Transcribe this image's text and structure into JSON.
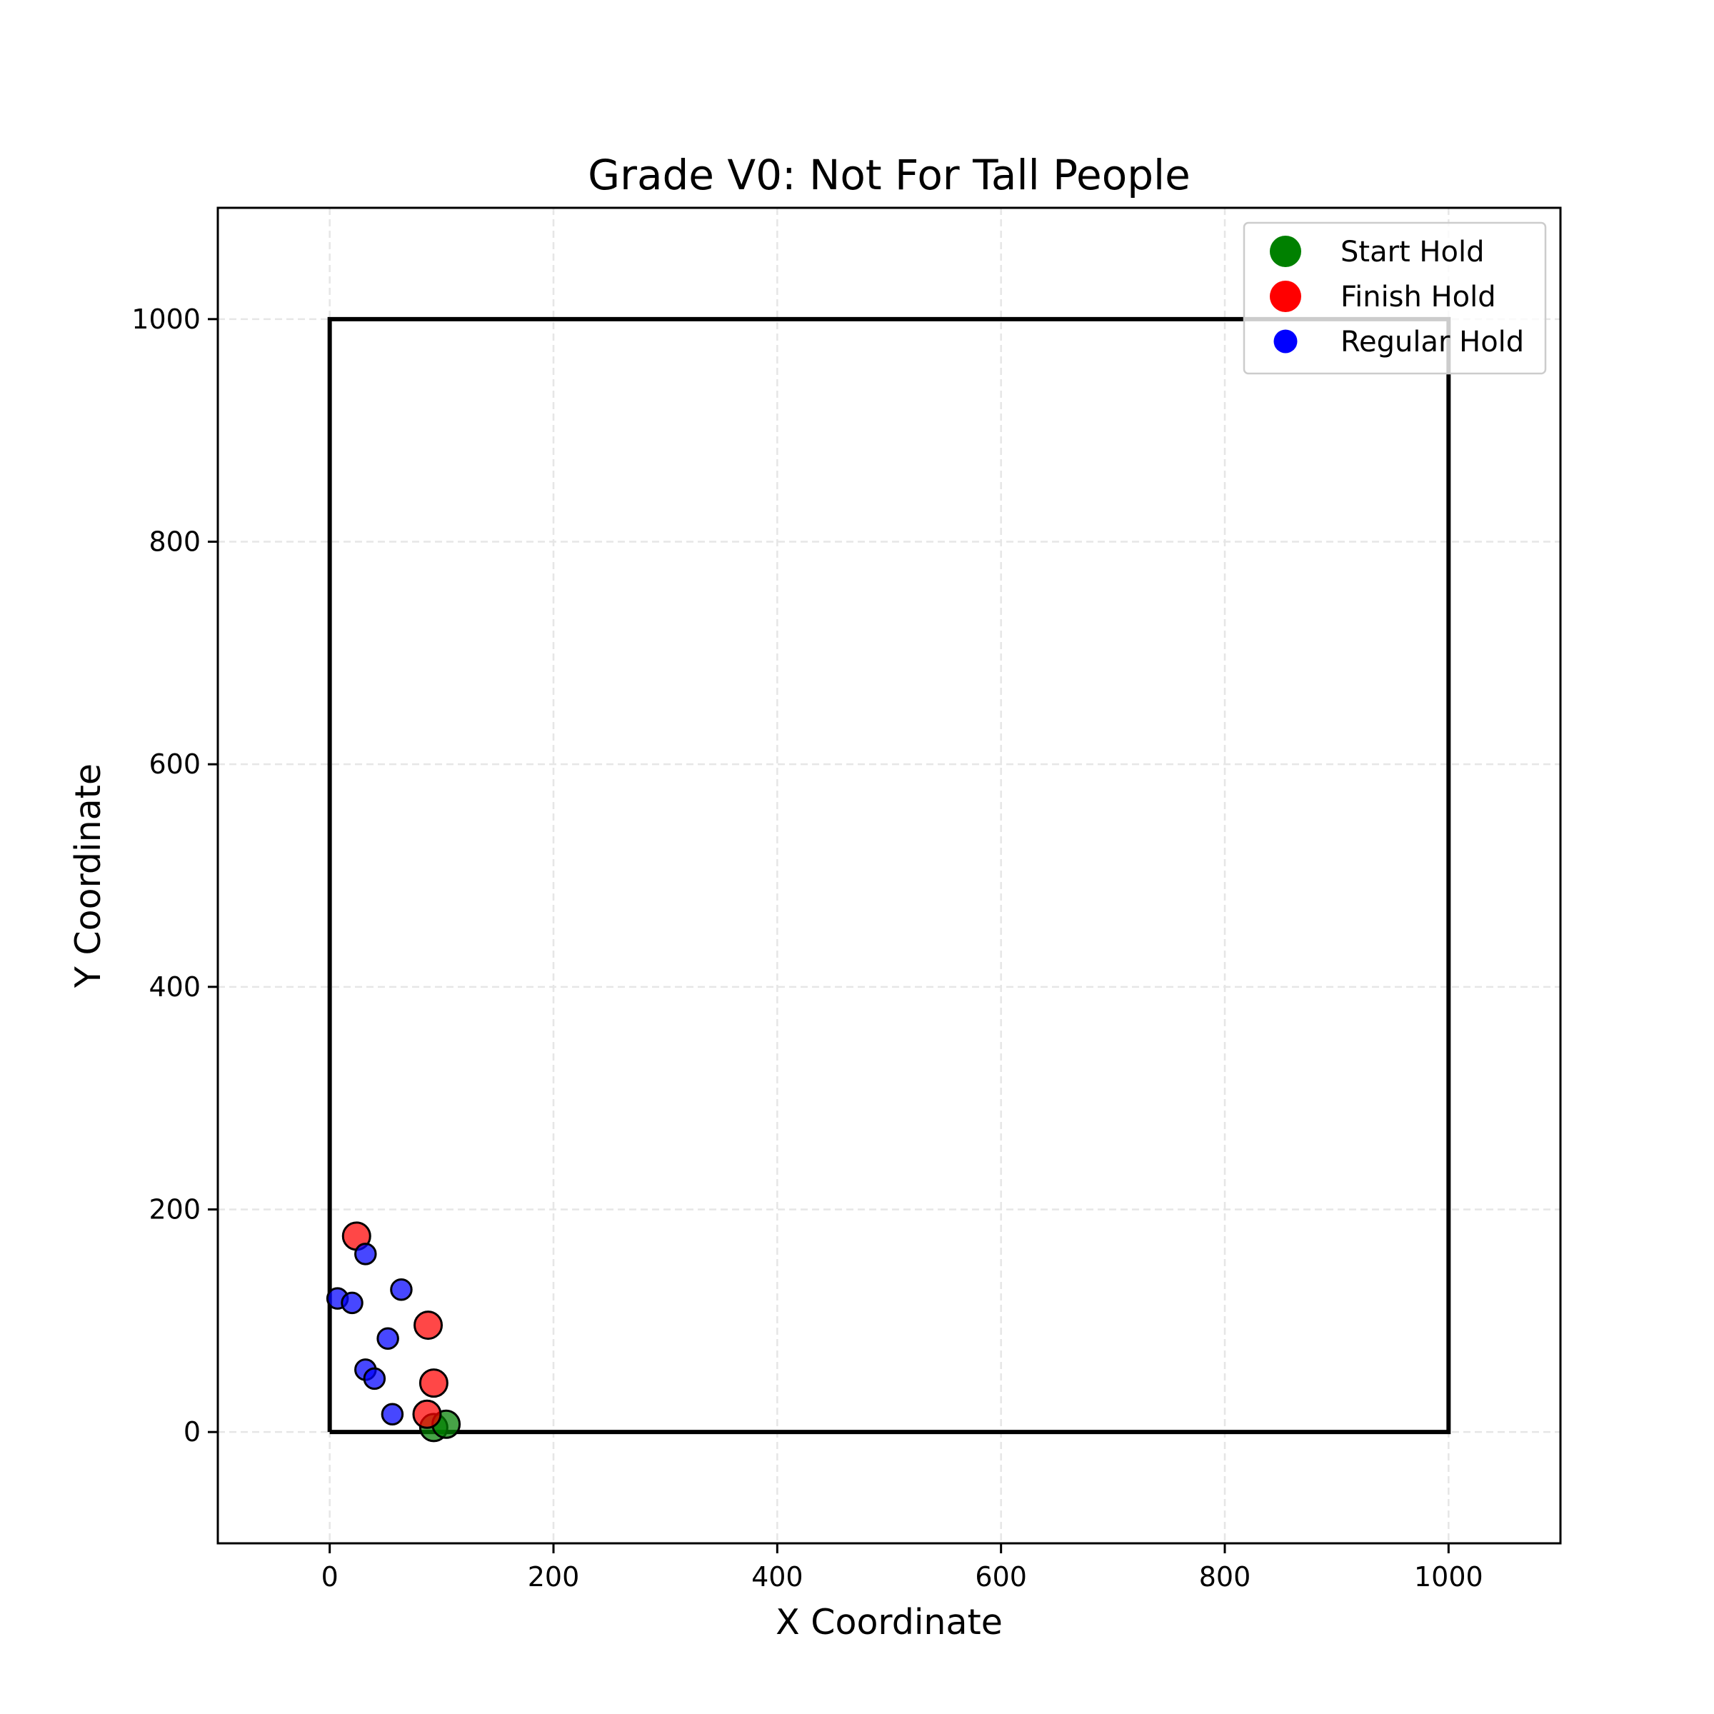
{
  "chart_data": {
    "type": "scatter",
    "title": "Grade V0: Not For Tall People",
    "xlabel": "X Coordinate",
    "ylabel": "Y Coordinate",
    "xlim": [
      -100,
      1100
    ],
    "ylim": [
      -100,
      1100
    ],
    "xticks": [
      0,
      200,
      400,
      600,
      800,
      1000
    ],
    "yticks": [
      0,
      200,
      400,
      600,
      800,
      1000
    ],
    "grid": true,
    "legend_position": "top-right",
    "boundary": [
      [
        0,
        0
      ],
      [
        1000,
        0
      ],
      [
        1000,
        1000
      ],
      [
        0,
        1000
      ],
      [
        0,
        0
      ]
    ],
    "series": [
      {
        "name": "Start Hold",
        "color": "#008000",
        "marker_scale": 1.0,
        "points": [
          [
            93,
            4
          ],
          [
            104,
            7
          ]
        ]
      },
      {
        "name": "Finish Hold",
        "color": "#ff0000",
        "marker_scale": 1.0,
        "points": [
          [
            24,
            176
          ],
          [
            88,
            96
          ],
          [
            93,
            44
          ],
          [
            87,
            16
          ]
        ]
      },
      {
        "name": "Regular Hold",
        "color": "#0000ff",
        "marker_scale": 0.75,
        "points": [
          [
            32,
            160
          ],
          [
            64,
            128
          ],
          [
            7,
            120
          ],
          [
            20,
            116
          ],
          [
            52,
            84
          ],
          [
            32,
            56
          ],
          [
            40,
            48
          ],
          [
            56,
            16
          ]
        ]
      }
    ]
  }
}
